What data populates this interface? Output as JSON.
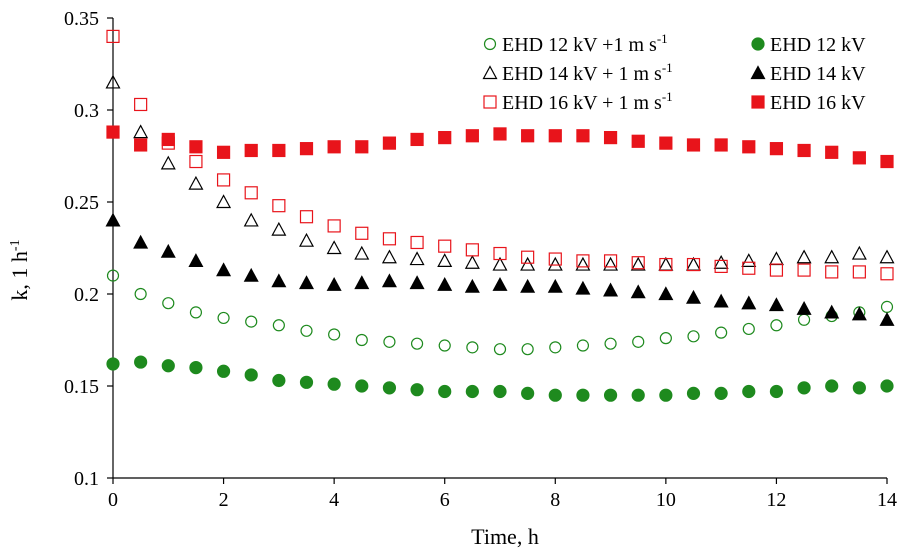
{
  "chart_data": {
    "type": "scatter",
    "title": "",
    "xlabel": "Time,  h",
    "ylabel": "k,  1 h",
    "ylabel_sup": "-1",
    "xlim": [
      0,
      14
    ],
    "ylim": [
      0.1,
      0.35
    ],
    "xticks": [
      0,
      2,
      4,
      6,
      8,
      10,
      12,
      14
    ],
    "yticks": [
      0.1,
      0.15,
      0.2,
      0.25,
      0.3,
      0.35
    ],
    "xtick_labels": [
      "0",
      "2",
      "4",
      "6",
      "8",
      "10",
      "12",
      "14"
    ],
    "ytick_labels": [
      "0.1",
      "0.15",
      "0.2",
      "0.25",
      "0.3",
      "0.35"
    ],
    "grid": false,
    "legend_position": "top-right",
    "x": [
      0,
      0.5,
      1,
      1.5,
      2,
      2.5,
      3,
      3.5,
      4,
      4.5,
      5,
      5.5,
      6,
      6.5,
      7,
      7.5,
      8,
      8.5,
      9,
      9.5,
      10,
      10.5,
      11,
      11.5,
      12,
      12.5,
      13,
      13.5,
      14
    ],
    "series": [
      {
        "name": "EHD 12 kV +1 m s",
        "name_sup": "-1",
        "marker": "circle",
        "filled": false,
        "color": "#1e8a1e",
        "values": [
          0.21,
          0.2,
          0.195,
          0.19,
          0.187,
          0.185,
          0.183,
          0.18,
          0.178,
          0.175,
          0.174,
          0.173,
          0.172,
          0.171,
          0.17,
          0.17,
          0.171,
          0.172,
          0.173,
          0.174,
          0.176,
          0.177,
          0.179,
          0.181,
          0.183,
          0.186,
          0.188,
          0.19,
          0.193
        ]
      },
      {
        "name": "EHD 12 kV",
        "name_sup": "",
        "marker": "circle",
        "filled": true,
        "color": "#1e8a1e",
        "values": [
          0.162,
          0.163,
          0.161,
          0.16,
          0.158,
          0.156,
          0.153,
          0.152,
          0.151,
          0.15,
          0.149,
          0.148,
          0.147,
          0.147,
          0.147,
          0.146,
          0.145,
          0.145,
          0.145,
          0.145,
          0.145,
          0.146,
          0.146,
          0.147,
          0.147,
          0.149,
          0.15,
          0.149,
          0.15
        ]
      },
      {
        "name": "EHD 14 kV + 1 m s",
        "name_sup": "-1",
        "marker": "triangle",
        "filled": false,
        "color": "#000000",
        "values": [
          0.315,
          0.288,
          0.271,
          0.26,
          0.25,
          0.24,
          0.235,
          0.229,
          0.225,
          0.222,
          0.22,
          0.219,
          0.218,
          0.217,
          0.216,
          0.216,
          0.216,
          0.216,
          0.216,
          0.216,
          0.216,
          0.216,
          0.217,
          0.218,
          0.219,
          0.22,
          0.22,
          0.222,
          0.22
        ]
      },
      {
        "name": "EHD 14 kV",
        "name_sup": "",
        "marker": "triangle",
        "filled": true,
        "color": "#000000",
        "values": [
          0.24,
          0.228,
          0.223,
          0.218,
          0.213,
          0.21,
          0.207,
          0.206,
          0.205,
          0.206,
          0.207,
          0.206,
          0.205,
          0.204,
          0.205,
          0.204,
          0.204,
          0.203,
          0.202,
          0.201,
          0.2,
          0.198,
          0.196,
          0.195,
          0.194,
          0.192,
          0.19,
          0.189,
          0.186
        ]
      },
      {
        "name": "EHD 16 kV + 1 m s",
        "name_sup": "-1",
        "marker": "square",
        "filled": false,
        "color": "#e8141b",
        "values": [
          0.34,
          0.303,
          0.282,
          0.272,
          0.262,
          0.255,
          0.248,
          0.242,
          0.237,
          0.233,
          0.23,
          0.228,
          0.226,
          0.224,
          0.222,
          0.22,
          0.219,
          0.218,
          0.218,
          0.217,
          0.216,
          0.216,
          0.215,
          0.214,
          0.213,
          0.213,
          0.212,
          0.212,
          0.211
        ]
      },
      {
        "name": "EHD 16 kV",
        "name_sup": "",
        "marker": "square",
        "filled": true,
        "color": "#e8141b",
        "values": [
          0.288,
          0.281,
          0.284,
          0.28,
          0.277,
          0.278,
          0.278,
          0.279,
          0.28,
          0.28,
          0.282,
          0.284,
          0.285,
          0.286,
          0.287,
          0.286,
          0.286,
          0.286,
          0.285,
          0.283,
          0.282,
          0.281,
          0.281,
          0.28,
          0.279,
          0.278,
          0.277,
          0.274,
          0.272
        ]
      }
    ]
  }
}
